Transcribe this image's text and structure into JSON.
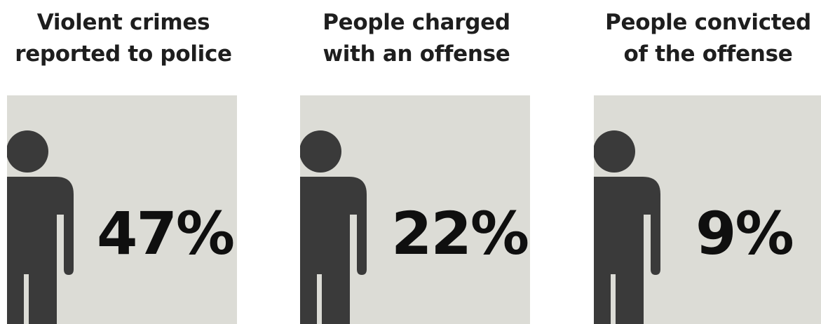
{
  "chart_data": {
    "type": "table",
    "categories": [
      "Violent crimes reported to police",
      "People charged with an offense",
      "People convicted of the offense"
    ],
    "values": [
      47,
      22,
      9
    ],
    "unit": "%",
    "colors": {
      "card_background": "#dcdcd6",
      "figure": "#3a3a3a",
      "text": "#111111"
    }
  },
  "panels": [
    {
      "title_line1": "Violent crimes",
      "title_line2": "reported to police",
      "value_label": "47%",
      "icon": "person-icon"
    },
    {
      "title_line1": "People charged",
      "title_line2": "with an offense",
      "value_label": "22%",
      "icon": "person-icon"
    },
    {
      "title_line1": "People convicted",
      "title_line2": "of the offense",
      "value_label": "9%",
      "icon": "person-icon"
    }
  ]
}
